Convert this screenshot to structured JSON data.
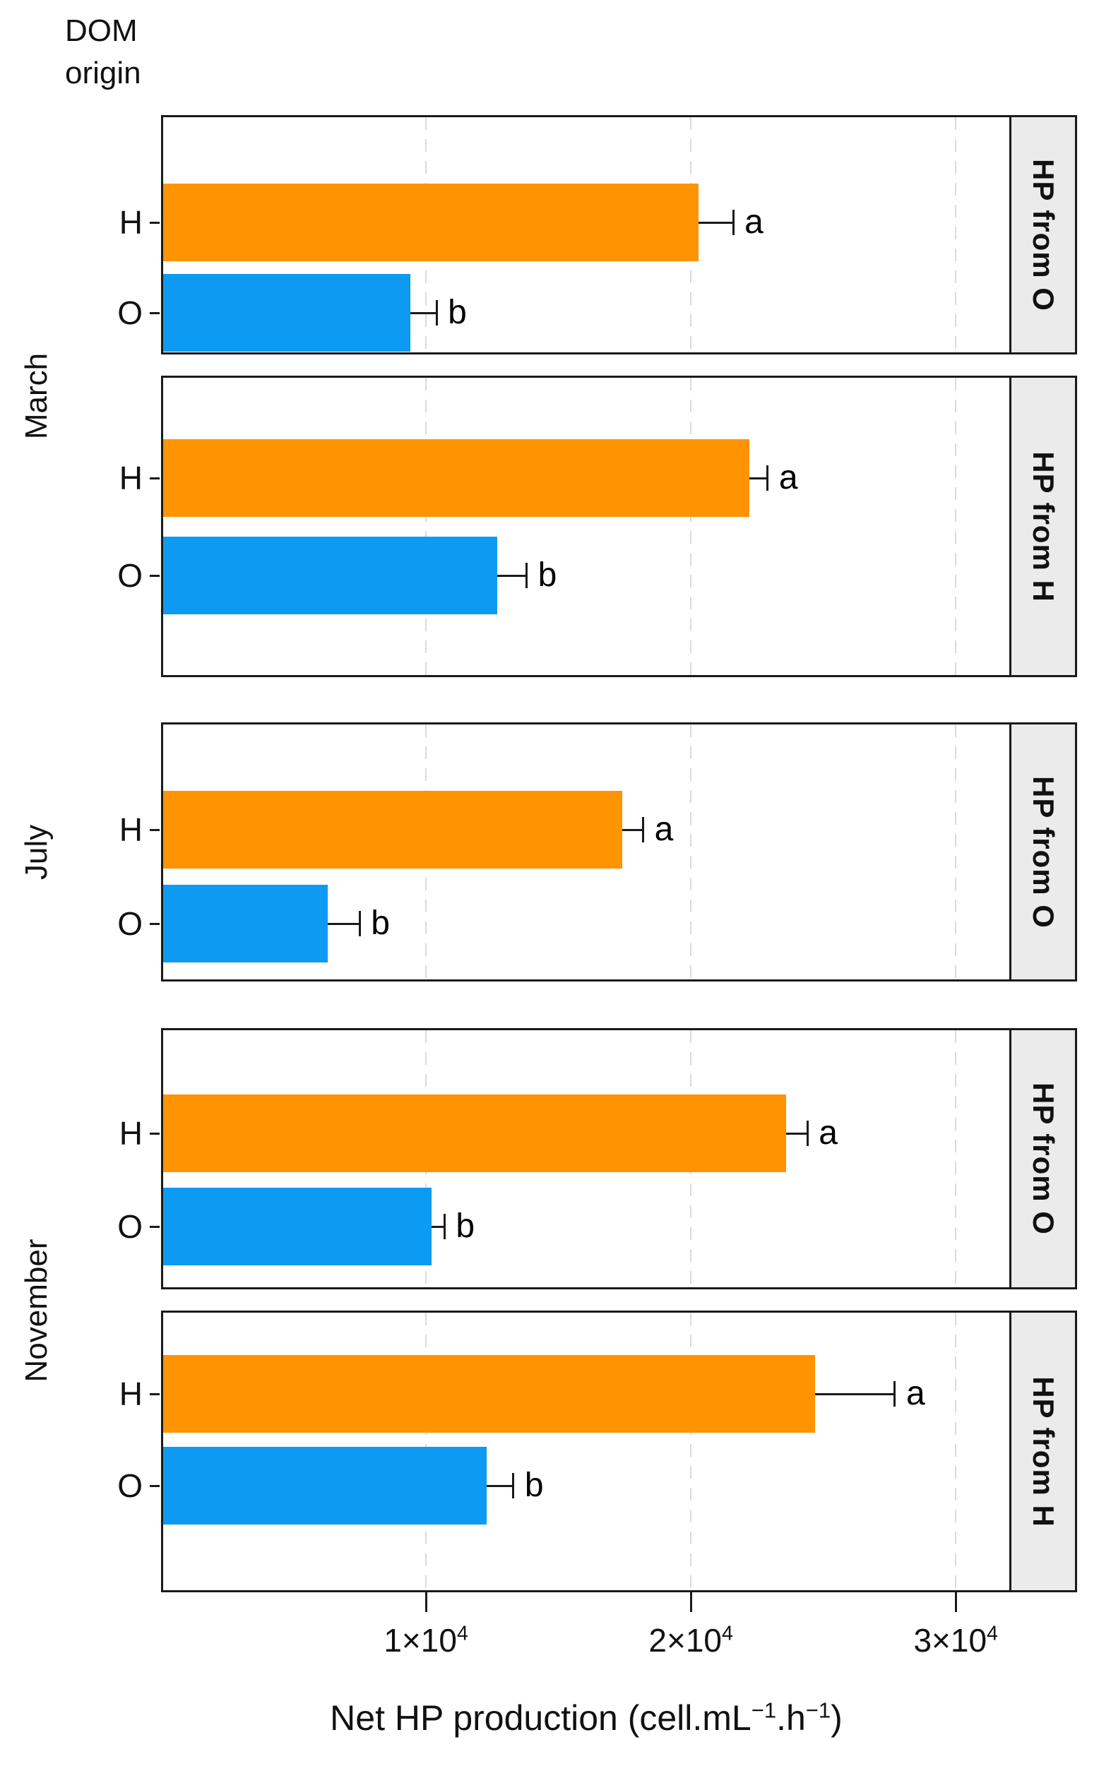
{
  "legend": {
    "line1": "DOM",
    "line2": "origin"
  },
  "colors": {
    "h_bar": "#FF9300",
    "o_bar": "#0D9AF2",
    "strip_bg": "#EBEBEB",
    "frame": "#1A1A1A",
    "gridline": "#DBDBDB",
    "text": "#111111"
  },
  "chart_data": {
    "type": "bar",
    "orientation": "horizontal",
    "title": "",
    "xlabel_segments": [
      {
        "text": "Net HP production (cell.mL"
      },
      {
        "sup": "−1"
      },
      {
        "text": ".h"
      },
      {
        "sup": "−1"
      },
      {
        "text": ")"
      }
    ],
    "xlim": [
      0,
      32100
    ],
    "grid": "dashed vertical at ticks",
    "x_ticks": [
      {
        "value": 10000,
        "base": "1×10",
        "exp": "4"
      },
      {
        "value": 20000,
        "base": "2×10",
        "exp": "4"
      },
      {
        "value": 30000,
        "base": "3×10",
        "exp": "4"
      }
    ],
    "category_axis": "DOM origin",
    "month_groups": [
      {
        "label": "March",
        "panel_indexes": [
          0,
          1
        ]
      },
      {
        "label": "July",
        "panel_indexes": [
          2
        ]
      },
      {
        "label": "November",
        "panel_indexes": [
          3,
          4
        ]
      }
    ],
    "panels": [
      {
        "month": "March",
        "strip": "HP from O",
        "bars": [
          {
            "dom_origin": "H",
            "value": 20300,
            "error": 1300,
            "sig": "a",
            "series": "h_bar"
          },
          {
            "dom_origin": "O",
            "value": 9400,
            "error": 1000,
            "sig": "b",
            "series": "o_bar"
          }
        ]
      },
      {
        "month": "March",
        "strip": "HP from H",
        "bars": [
          {
            "dom_origin": "H",
            "value": 22200,
            "error": 700,
            "sig": "a",
            "series": "h_bar"
          },
          {
            "dom_origin": "O",
            "value": 12700,
            "error": 1100,
            "sig": "b",
            "series": "o_bar"
          }
        ]
      },
      {
        "month": "July",
        "strip": "HP from O",
        "bars": [
          {
            "dom_origin": "H",
            "value": 17400,
            "error": 800,
            "sig": "a",
            "series": "h_bar"
          },
          {
            "dom_origin": "O",
            "value": 6300,
            "error": 1200,
            "sig": "b",
            "series": "o_bar"
          }
        ]
      },
      {
        "month": "November",
        "strip": "HP from O",
        "bars": [
          {
            "dom_origin": "H",
            "value": 23600,
            "error": 800,
            "sig": "a",
            "series": "h_bar"
          },
          {
            "dom_origin": "O",
            "value": 10200,
            "error": 500,
            "sig": "b",
            "series": "o_bar"
          }
        ]
      },
      {
        "month": "November",
        "strip": "HP from H",
        "bars": [
          {
            "dom_origin": "H",
            "value": 24700,
            "error": 3000,
            "sig": "a",
            "series": "h_bar"
          },
          {
            "dom_origin": "O",
            "value": 12300,
            "error": 1000,
            "sig": "b",
            "series": "o_bar"
          }
        ]
      }
    ]
  }
}
